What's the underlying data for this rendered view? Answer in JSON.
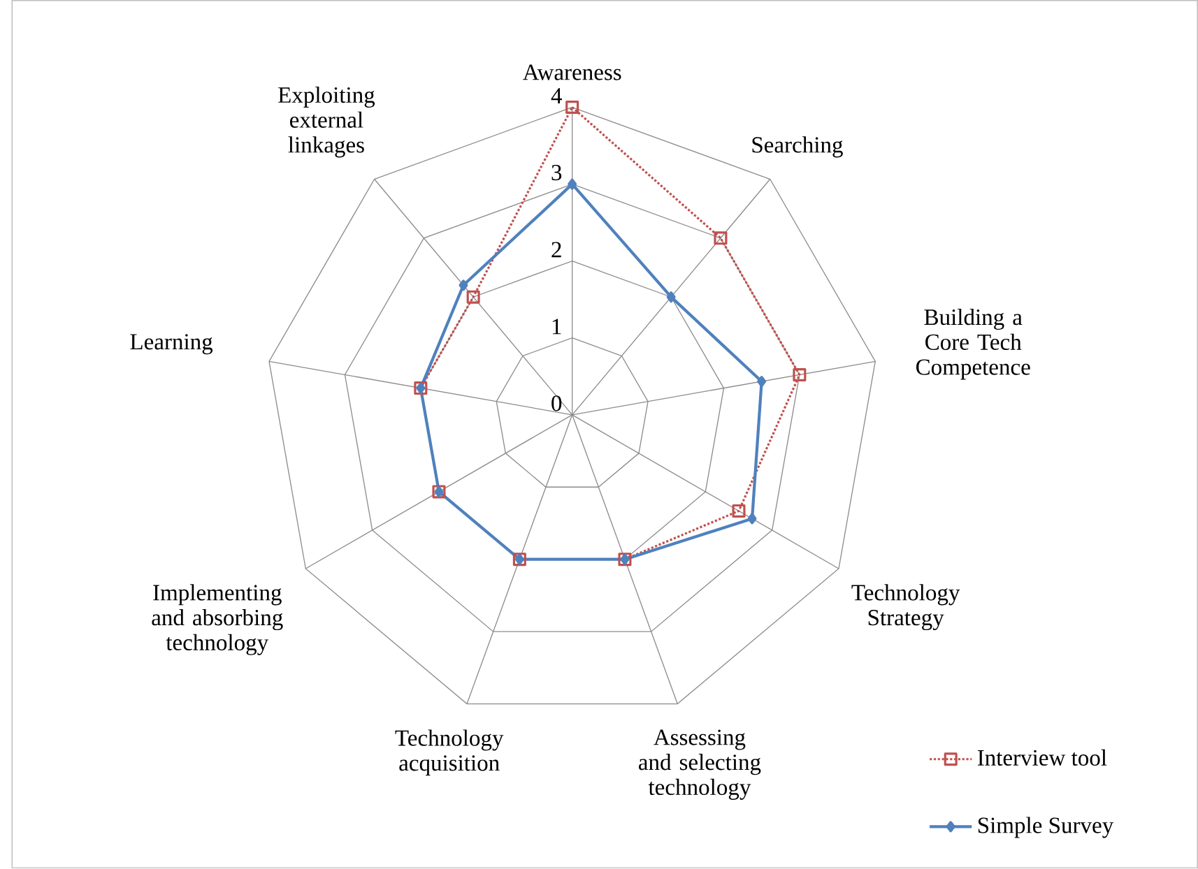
{
  "chart_data": {
    "type": "radar",
    "categories": [
      "Awareness",
      "Searching",
      "Building a Core Tech Competence",
      "Technology Strategy",
      "Assessing and selecting technology",
      "Technology acquisition",
      "Implementing and absorbing technology",
      "Learning",
      "Exploiting external linkages"
    ],
    "series": [
      {
        "name": "Interview tool",
        "color": "#c0504d",
        "marker": "square",
        "line_style": "dotted",
        "values": [
          4,
          3,
          3,
          2.5,
          2,
          2,
          2,
          2,
          2
        ]
      },
      {
        "name": "Simple Survey",
        "color": "#4f81bd",
        "marker": "diamond",
        "line_style": "solid",
        "values": [
          3,
          2,
          2.5,
          2.7,
          2,
          2,
          2,
          2,
          2.2
        ]
      }
    ],
    "ylim": [
      0,
      4
    ],
    "yticks": [
      0,
      1,
      2,
      3,
      4
    ],
    "grid": true,
    "legend": "bottom right"
  }
}
